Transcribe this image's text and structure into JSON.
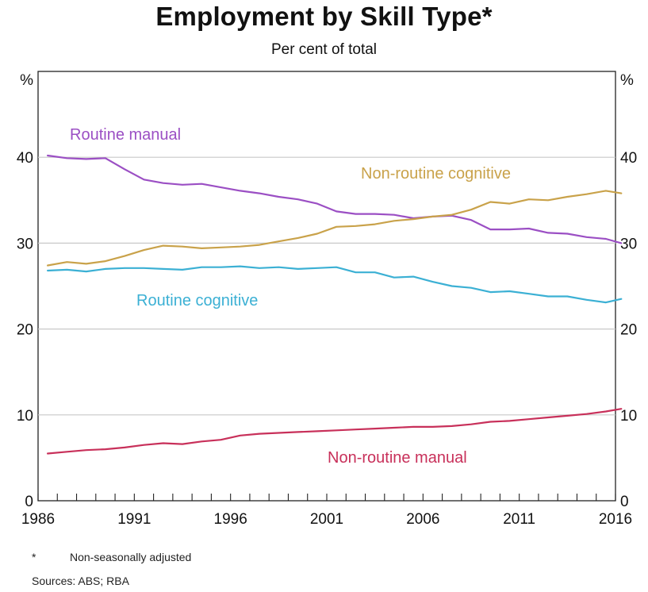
{
  "chart_data": {
    "type": "line",
    "title": "Employment by Skill Type*",
    "subtitle": "Per cent of total",
    "ylabel_left": "%",
    "ylabel_right": "%",
    "xlim": [
      1986,
      2016
    ],
    "ylim": [
      0,
      50
    ],
    "x_ticks": [
      "1986",
      "1991",
      "1996",
      "2001",
      "2006",
      "2011",
      "2016"
    ],
    "y_ticks": [
      "0",
      "10",
      "20",
      "30",
      "40"
    ],
    "grid": true,
    "series": [
      {
        "name": "Routine manual",
        "color": "#9b4fc4",
        "x": [
          1986.5,
          1987.5,
          1988.5,
          1989.5,
          1990.5,
          1991.5,
          1992.5,
          1993.5,
          1994.5,
          1995.5,
          1996.5,
          1997.5,
          1998.5,
          1999.5,
          2000.5,
          2001.5,
          2002.5,
          2003.5,
          2004.5,
          2005.5,
          2006.5,
          2007.5,
          2008.5,
          2009.5,
          2010.5,
          2011.5,
          2012.5,
          2013.5,
          2014.5,
          2015.5,
          2016.3
        ],
        "values": [
          40.2,
          39.9,
          39.8,
          39.9,
          38.6,
          37.4,
          37.0,
          36.8,
          36.9,
          36.5,
          36.1,
          35.8,
          35.4,
          35.1,
          34.6,
          33.7,
          33.4,
          33.4,
          33.3,
          32.9,
          33.1,
          33.2,
          32.7,
          31.6,
          31.6,
          31.7,
          31.2,
          31.1,
          30.7,
          30.5,
          30.0
        ]
      },
      {
        "name": "Non-routine cognitive",
        "color": "#c9a24a",
        "x": [
          1986.5,
          1987.5,
          1988.5,
          1989.5,
          1990.5,
          1991.5,
          1992.5,
          1993.5,
          1994.5,
          1995.5,
          1996.5,
          1997.5,
          1998.5,
          1999.5,
          2000.5,
          2001.5,
          2002.5,
          2003.5,
          2004.5,
          2005.5,
          2006.5,
          2007.5,
          2008.5,
          2009.5,
          2010.5,
          2011.5,
          2012.5,
          2013.5,
          2014.5,
          2015.5,
          2016.3
        ],
        "values": [
          27.4,
          27.8,
          27.6,
          27.9,
          28.5,
          29.2,
          29.7,
          29.6,
          29.4,
          29.5,
          29.6,
          29.8,
          30.2,
          30.6,
          31.1,
          31.9,
          32.0,
          32.2,
          32.6,
          32.8,
          33.1,
          33.3,
          33.9,
          34.8,
          34.6,
          35.1,
          35.0,
          35.4,
          35.7,
          36.1,
          35.8
        ]
      },
      {
        "name": "Routine cognitive",
        "color": "#3bb0d4",
        "x": [
          1986.5,
          1987.5,
          1988.5,
          1989.5,
          1990.5,
          1991.5,
          1992.5,
          1993.5,
          1994.5,
          1995.5,
          1996.5,
          1997.5,
          1998.5,
          1999.5,
          2000.5,
          2001.5,
          2002.5,
          2003.5,
          2004.5,
          2005.5,
          2006.5,
          2007.5,
          2008.5,
          2009.5,
          2010.5,
          2011.5,
          2012.5,
          2013.5,
          2014.5,
          2015.5,
          2016.3
        ],
        "values": [
          26.8,
          26.9,
          26.7,
          27.0,
          27.1,
          27.1,
          27.0,
          26.9,
          27.2,
          27.2,
          27.3,
          27.1,
          27.2,
          27.0,
          27.1,
          27.2,
          26.6,
          26.6,
          26.0,
          26.1,
          25.5,
          25.0,
          24.8,
          24.3,
          24.4,
          24.1,
          23.8,
          23.8,
          23.4,
          23.1,
          23.5
        ]
      },
      {
        "name": "Non-routine manual",
        "color": "#c8305a",
        "x": [
          1986.5,
          1987.5,
          1988.5,
          1989.5,
          1990.5,
          1991.5,
          1992.5,
          1993.5,
          1994.5,
          1995.5,
          1996.5,
          1997.5,
          1998.5,
          1999.5,
          2000.5,
          2001.5,
          2002.5,
          2003.5,
          2004.5,
          2005.5,
          2006.5,
          2007.5,
          2008.5,
          2009.5,
          2010.5,
          2011.5,
          2012.5,
          2013.5,
          2014.5,
          2015.5,
          2016.3
        ],
        "values": [
          5.5,
          5.7,
          5.9,
          6.0,
          6.2,
          6.5,
          6.7,
          6.6,
          6.9,
          7.1,
          7.6,
          7.8,
          7.9,
          8.0,
          8.1,
          8.2,
          8.3,
          8.4,
          8.5,
          8.6,
          8.6,
          8.7,
          8.9,
          9.2,
          9.3,
          9.5,
          9.7,
          9.9,
          10.1,
          10.4,
          10.7
        ]
      }
    ]
  },
  "footnote": {
    "mark": "*",
    "text": "Non-seasonally adjusted"
  },
  "sources": "Sources:   ABS; RBA"
}
